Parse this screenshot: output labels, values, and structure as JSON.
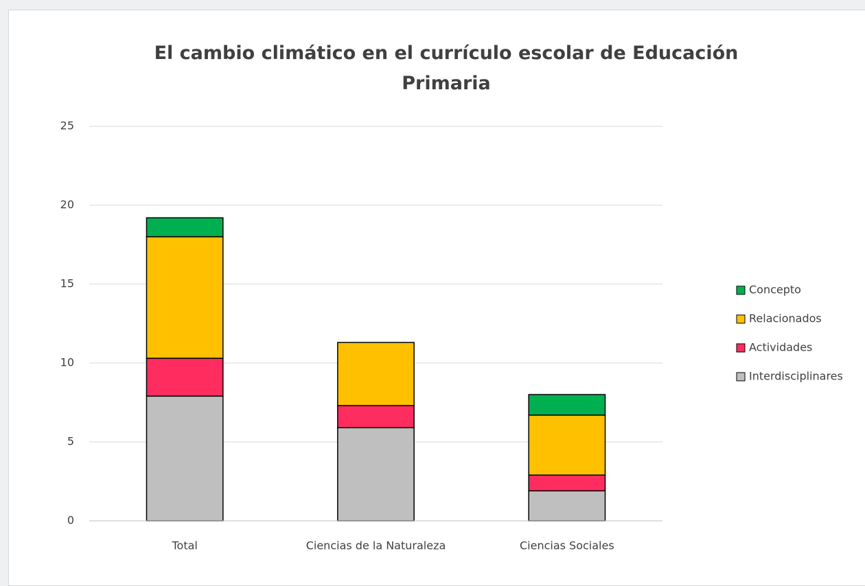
{
  "chart_data": {
    "type": "stacked_bar",
    "title": "El cambio climático en el currículo escolar de Educación Primaria",
    "categories": [
      "Total",
      "Ciencias de la Naturaleza",
      "Ciencias Sociales"
    ],
    "series": [
      {
        "name": "Interdisciplinares",
        "color": "#bfbfbf",
        "values": [
          7.9,
          5.9,
          1.9
        ]
      },
      {
        "name": "Actividades",
        "color": "#ff2d5f",
        "values": [
          2.4,
          1.4,
          1.0
        ]
      },
      {
        "name": "Relacionados",
        "color": "#ffc000",
        "values": [
          7.7,
          4.0,
          3.8
        ]
      },
      {
        "name": "Concepto",
        "color": "#00b050",
        "values": [
          1.2,
          0,
          1.3
        ]
      }
    ],
    "ylim": [
      0,
      25
    ],
    "yticks": [
      0,
      5,
      10,
      15,
      20,
      25
    ],
    "grid": true,
    "legend": "right"
  }
}
